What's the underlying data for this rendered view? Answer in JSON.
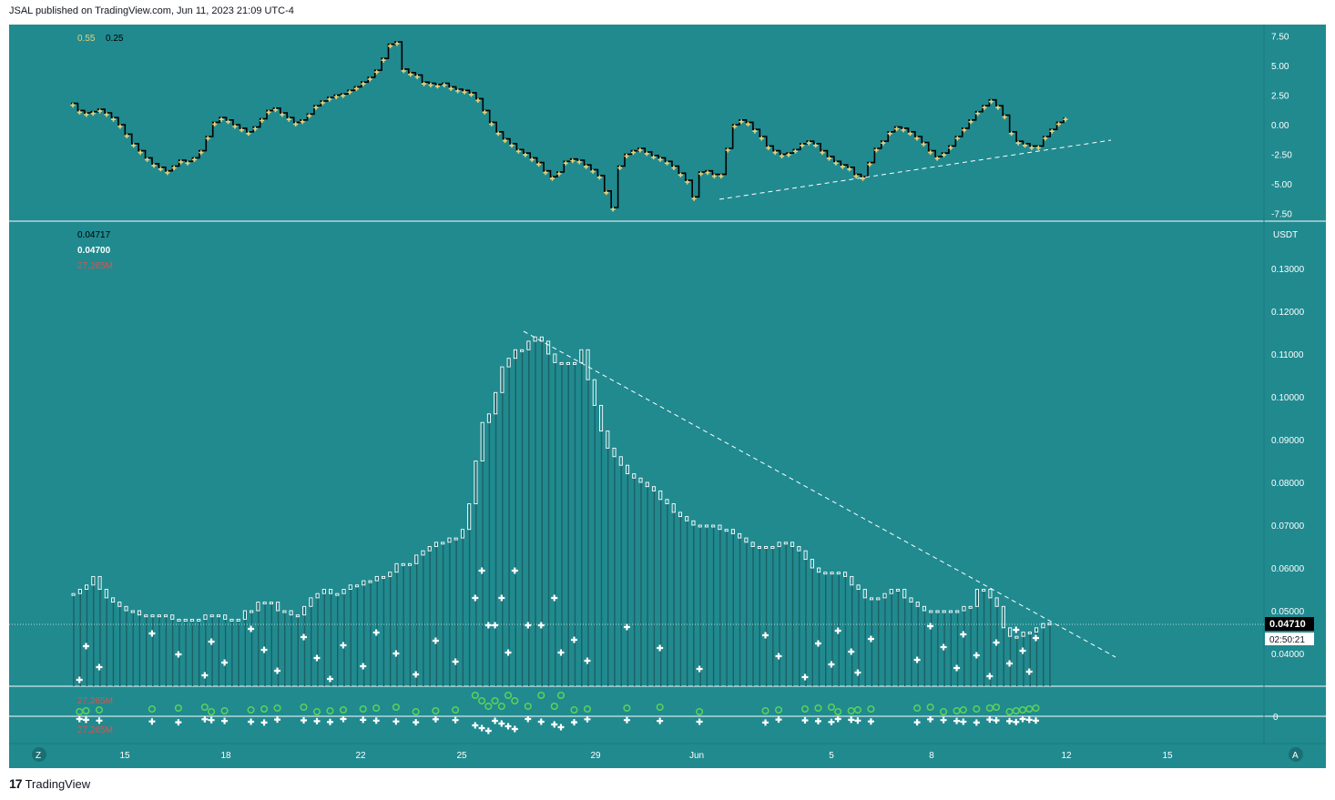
{
  "header": {
    "publisher_line": "JSAL published on TradingView.com, Jun 11, 2023 21:09 UTC-4"
  },
  "footer": {
    "brand": "TradingView"
  },
  "colors": {
    "background": "#208a8f",
    "oscillator_line": "#000000",
    "oscillator_markers": "#e6d17a",
    "candle": "#ffffff",
    "volume_circles": "#5ed15a",
    "cross_markers": "#ffffff",
    "legend_red": "#d9544f",
    "trendline": "#ffffff"
  },
  "top_panel": {
    "legend": {
      "value1": "0.55",
      "value2": "0.25"
    },
    "y_ticks": [
      "7.50",
      "5.00",
      "2.50",
      "0.00",
      "-2.50",
      "-5.00",
      "-7.50"
    ]
  },
  "main_panel": {
    "legend": {
      "price_a": "0.04717",
      "price_b": "0.04700",
      "volume": "27.265M"
    },
    "currency": "USDT",
    "y_ticks": [
      "0.13000",
      "0.12000",
      "0.11000",
      "0.10000",
      "0.09000",
      "0.08000",
      "0.07000",
      "0.06000",
      "0.05000",
      "0.04000"
    ],
    "last_price_tag": "0.04710",
    "countdown": "02:50:21"
  },
  "bottom_panel": {
    "legend_top": "27.265M",
    "legend_bottom": "27.265M",
    "y_tick": "0"
  },
  "x_axis": {
    "labels": [
      "15",
      "18",
      "22",
      "25",
      "29",
      "Jun",
      "5",
      "8",
      "12",
      "15"
    ]
  },
  "axis_buttons": {
    "left": "Z",
    "right": "A"
  },
  "chart_data": [
    {
      "type": "line",
      "title": "",
      "y_range": [
        -7.5,
        7.5
      ],
      "series": [
        {
          "values": [
            1.8,
            1.2,
            1.0,
            1.1,
            1.3,
            1.0,
            0.6,
            0.0,
            -0.8,
            -1.6,
            -2.2,
            -2.8,
            -3.3,
            -3.6,
            -3.9,
            -3.5,
            -3.0,
            -3.1,
            -2.8,
            -2.2,
            -1.0,
            0.2,
            0.6,
            0.4,
            0.0,
            -0.3,
            -0.6,
            -0.2,
            0.5,
            1.2,
            1.4,
            1.0,
            0.6,
            0.2,
            0.4,
            0.9,
            1.6,
            2.0,
            2.3,
            2.5,
            2.6,
            2.9,
            3.2,
            3.6,
            4.0,
            4.6,
            5.6,
            6.8,
            7.0,
            4.7,
            4.4,
            4.2,
            3.6,
            3.5,
            3.4,
            3.5,
            3.2,
            3.0,
            2.9,
            2.7,
            2.2,
            1.2,
            0.2,
            -0.6,
            -1.2,
            -1.6,
            -2.1,
            -2.4,
            -2.8,
            -3.2,
            -3.9,
            -4.4,
            -4.0,
            -3.1,
            -2.9,
            -3.0,
            -3.4,
            -3.8,
            -4.3,
            -5.6,
            -7.0,
            -3.5,
            -2.5,
            -2.2,
            -2.0,
            -2.3,
            -2.6,
            -2.8,
            -3.1,
            -3.5,
            -4.1,
            -4.7,
            -6.1,
            -4.0,
            -3.9,
            -4.2,
            -4.2,
            -2.0,
            0.0,
            0.4,
            0.2,
            -0.4,
            -1.0,
            -1.8,
            -2.2,
            -2.5,
            -2.4,
            -2.1,
            -1.6,
            -1.4,
            -1.6,
            -2.2,
            -2.7,
            -3.1,
            -3.4,
            -3.6,
            -4.2,
            -4.4,
            -3.2,
            -2.0,
            -1.4,
            -0.6,
            -0.2,
            -0.3,
            -0.6,
            -1.0,
            -1.5,
            -2.2,
            -2.7,
            -2.4,
            -1.8,
            -1.0,
            -0.3,
            0.4,
            1.1,
            1.6,
            2.1,
            1.6,
            0.8,
            -0.6,
            -1.4,
            -1.6,
            -1.8,
            -1.8,
            -1.0,
            -0.4,
            0.2,
            0.6
          ]
        }
      ]
    },
    {
      "type": "bar",
      "title": "",
      "y_range": [
        0.035,
        0.135
      ],
      "series": [
        {
          "values": [
            0.054,
            0.055,
            0.056,
            0.058,
            0.055,
            0.053,
            0.052,
            0.051,
            0.05,
            0.05,
            0.049,
            0.049,
            0.049,
            0.049,
            0.049,
            0.048,
            0.048,
            0.048,
            0.048,
            0.048,
            0.049,
            0.049,
            0.049,
            0.048,
            0.048,
            0.048,
            0.05,
            0.05,
            0.052,
            0.052,
            0.052,
            0.05,
            0.05,
            0.049,
            0.049,
            0.051,
            0.053,
            0.054,
            0.055,
            0.054,
            0.054,
            0.055,
            0.056,
            0.056,
            0.057,
            0.057,
            0.058,
            0.058,
            0.059,
            0.061,
            0.061,
            0.061,
            0.063,
            0.064,
            0.065,
            0.066,
            0.066,
            0.067,
            0.067,
            0.069,
            0.075,
            0.085,
            0.094,
            0.096,
            0.101,
            0.107,
            0.109,
            0.111,
            0.111,
            0.113,
            0.114,
            0.113,
            0.11,
            0.108,
            0.108,
            0.108,
            0.108,
            0.111,
            0.104,
            0.098,
            0.092,
            0.088,
            0.086,
            0.084,
            0.082,
            0.081,
            0.08,
            0.079,
            0.078,
            0.076,
            0.075,
            0.073,
            0.072,
            0.071,
            0.07,
            0.07,
            0.07,
            0.07,
            0.069,
            0.069,
            0.068,
            0.067,
            0.066,
            0.065,
            0.065,
            0.065,
            0.065,
            0.066,
            0.066,
            0.065,
            0.064,
            0.062,
            0.06,
            0.059,
            0.059,
            0.059,
            0.059,
            0.058,
            0.056,
            0.055,
            0.053,
            0.053,
            0.053,
            0.054,
            0.055,
            0.055,
            0.053,
            0.052,
            0.051,
            0.05,
            0.05,
            0.05,
            0.05,
            0.05,
            0.05,
            0.051,
            0.051,
            0.055,
            0.055,
            0.053,
            0.051,
            0.046,
            0.044,
            0.044,
            0.045,
            0.045,
            0.046,
            0.047,
            0.0471
          ]
        }
      ]
    },
    {
      "type": "scatter",
      "title": "",
      "y_range": [
        -1,
        1
      ],
      "series": [
        {
          "values": []
        }
      ]
    }
  ]
}
